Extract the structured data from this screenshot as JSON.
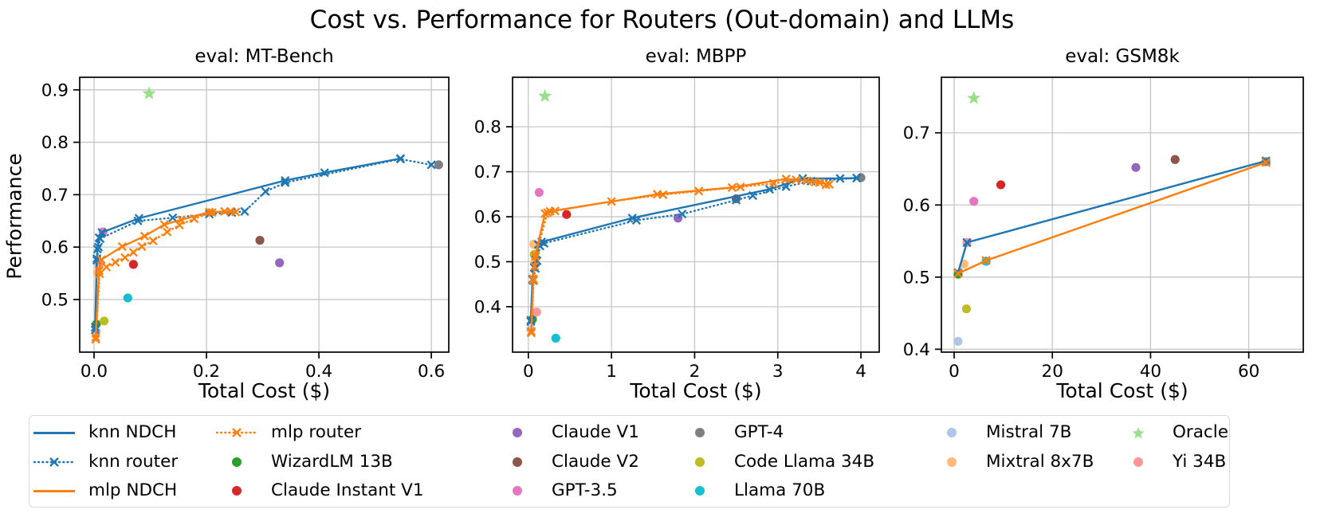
{
  "figure": {
    "title": "Cost vs. Performance for Routers (Out-domain) and LLMs",
    "ylabel": "Performance"
  },
  "colors": {
    "knn": "#1f77b4",
    "mlp": "#ff7f0e",
    "grid": "#c6c6c6",
    "spine": "#000000",
    "wizardlm_13b": "#2ca02c",
    "claude_instant_v1": "#d62728",
    "claude_v1": "#9467bd",
    "claude_v2": "#8c564b",
    "gpt_3_5": "#e377c2",
    "gpt_4": "#7f7f7f",
    "code_llama_34b": "#bcbd22",
    "llama_70b": "#17becf",
    "mistral_7b": "#aec7e8",
    "mixtral_8x7b": "#ffbb78",
    "oracle": "#98df8a",
    "yi_34b": "#ff9896"
  },
  "chart_data": [
    {
      "type": "line_scatter",
      "title": "eval: MT-Bench",
      "xlabel": "Total Cost ($)",
      "ylabel": "Performance",
      "xlim": [
        -0.0255,
        0.631
      ],
      "ylim": [
        0.3996,
        0.924
      ],
      "xticks": [
        0.0,
        0.2,
        0.4,
        0.6
      ],
      "xtick_labels": [
        "0.0",
        "0.2",
        "0.4",
        "0.6"
      ],
      "yticks": [
        0.5,
        0.6,
        0.7,
        0.8,
        0.9
      ],
      "ytick_labels": [
        "0.5",
        "0.6",
        "0.7",
        "0.8",
        "0.9"
      ],
      "grid": true,
      "series": [
        {
          "name": "knn NDCH",
          "color": "#1f77b4",
          "style": "solid",
          "marker": "x",
          "points": [
            [
              0.002,
              0.447
            ],
            [
              0.005,
              0.578
            ],
            [
              0.006,
              0.596
            ],
            [
              0.009,
              0.618
            ],
            [
              0.014,
              0.628
            ],
            [
              0.08,
              0.655
            ],
            [
              0.34,
              0.727
            ],
            [
              0.41,
              0.742
            ],
            [
              0.545,
              0.769
            ]
          ]
        },
        {
          "name": "knn router",
          "color": "#1f77b4",
          "style": "dotted",
          "marker": "x",
          "points": [
            [
              0.002,
              0.442
            ],
            [
              0.005,
              0.575
            ],
            [
              0.008,
              0.6
            ],
            [
              0.011,
              0.616
            ],
            [
              0.078,
              0.65
            ],
            [
              0.14,
              0.656
            ],
            [
              0.205,
              0.663
            ],
            [
              0.245,
              0.666
            ],
            [
              0.268,
              0.668
            ],
            [
              0.305,
              0.706
            ],
            [
              0.34,
              0.723
            ],
            [
              0.545,
              0.768
            ],
            [
              0.6,
              0.757
            ]
          ]
        },
        {
          "name": "mlp NDCH",
          "color": "#ff7f0e",
          "style": "solid",
          "marker": "x",
          "points": [
            [
              0.003,
              0.428
            ],
            [
              0.009,
              0.555
            ],
            [
              0.013,
              0.576
            ],
            [
              0.05,
              0.601
            ],
            [
              0.09,
              0.621
            ],
            [
              0.125,
              0.643
            ],
            [
              0.155,
              0.652
            ],
            [
              0.205,
              0.667
            ],
            [
              0.243,
              0.668
            ]
          ]
        },
        {
          "name": "mlp router",
          "color": "#ff7f0e",
          "style": "dotted",
          "marker": "x",
          "points": [
            [
              0.003,
              0.424
            ],
            [
              0.01,
              0.549
            ],
            [
              0.022,
              0.562
            ],
            [
              0.038,
              0.571
            ],
            [
              0.055,
              0.58
            ],
            [
              0.07,
              0.59
            ],
            [
              0.085,
              0.601
            ],
            [
              0.105,
              0.612
            ],
            [
              0.13,
              0.629
            ],
            [
              0.152,
              0.642
            ],
            [
              0.178,
              0.654
            ],
            [
              0.21,
              0.666
            ],
            [
              0.232,
              0.668
            ],
            [
              0.252,
              0.667
            ]
          ]
        }
      ],
      "scatter": [
        {
          "name": "WizardLM 13B",
          "color": "#2ca02c",
          "marker": "circle",
          "x": 0.004,
          "y": 0.453
        },
        {
          "name": "Mistral 7B",
          "color": "#aec7e8",
          "marker": "circle",
          "x": 0.004,
          "y": 0.439
        },
        {
          "name": "Code Llama 34B",
          "color": "#bcbd22",
          "marker": "circle",
          "x": 0.018,
          "y": 0.459
        },
        {
          "name": "Llama 70B",
          "color": "#17becf",
          "marker": "circle",
          "x": 0.06,
          "y": 0.503
        },
        {
          "name": "Mixtral 8x7B",
          "color": "#ffbb78",
          "marker": "circle",
          "x": 0.006,
          "y": 0.551
        },
        {
          "name": "Yi 34B",
          "color": "#ff9896",
          "marker": "circle",
          "x": 0.009,
          "y": 0.566
        },
        {
          "name": "Claude Instant V1",
          "color": "#d62728",
          "marker": "circle",
          "x": 0.07,
          "y": 0.567
        },
        {
          "name": "GPT-3.5",
          "color": "#e377c2",
          "marker": "circle",
          "x": 0.016,
          "y": 0.629
        },
        {
          "name": "Claude V2",
          "color": "#8c564b",
          "marker": "circle",
          "x": 0.295,
          "y": 0.613
        },
        {
          "name": "Claude V1",
          "color": "#9467bd",
          "marker": "circle",
          "x": 0.33,
          "y": 0.57
        },
        {
          "name": "GPT-4",
          "color": "#7f7f7f",
          "marker": "circle",
          "x": 0.613,
          "y": 0.757
        },
        {
          "name": "Oracle",
          "color": "#98df8a",
          "marker": "star",
          "x": 0.098,
          "y": 0.893
        }
      ]
    },
    {
      "type": "line_scatter",
      "title": "eval: MBPP",
      "xlabel": "Total Cost ($)",
      "ylabel": "Performance",
      "xlim": [
        -0.19,
        4.22
      ],
      "ylim": [
        0.299,
        0.91
      ],
      "xticks": [
        0,
        1,
        2,
        3,
        4
      ],
      "xtick_labels": [
        "0",
        "1",
        "2",
        "3",
        "4"
      ],
      "yticks": [
        0.4,
        0.5,
        0.6,
        0.7,
        0.8
      ],
      "ytick_labels": [
        "0.4",
        "0.5",
        "0.6",
        "0.7",
        "0.8"
      ],
      "grid": true,
      "series": [
        {
          "name": "knn NDCH",
          "color": "#1f77b4",
          "style": "solid",
          "marker": "x",
          "points": [
            [
              0.03,
              0.37
            ],
            [
              0.05,
              0.461
            ],
            [
              0.07,
              0.487
            ],
            [
              0.09,
              0.504
            ],
            [
              0.12,
              0.538
            ],
            [
              0.16,
              0.544
            ],
            [
              1.25,
              0.597
            ],
            [
              2.9,
              0.661
            ],
            [
              3.3,
              0.685
            ],
            [
              3.75,
              0.685
            ],
            [
              3.95,
              0.686
            ]
          ]
        },
        {
          "name": "knn router",
          "color": "#1f77b4",
          "style": "dotted",
          "marker": "x",
          "points": [
            [
              0.03,
              0.367
            ],
            [
              0.06,
              0.458
            ],
            [
              0.085,
              0.485
            ],
            [
              0.105,
              0.502
            ],
            [
              0.14,
              0.535
            ],
            [
              0.19,
              0.541
            ],
            [
              1.3,
              0.592
            ],
            [
              1.85,
              0.606
            ],
            [
              2.5,
              0.637
            ],
            [
              2.7,
              0.647
            ],
            [
              3.1,
              0.667
            ],
            [
              3.4,
              0.679
            ],
            [
              3.95,
              0.686
            ]
          ]
        },
        {
          "name": "mlp NDCH",
          "color": "#ff7f0e",
          "style": "solid",
          "marker": "x",
          "points": [
            [
              0.035,
              0.345
            ],
            [
              0.06,
              0.462
            ],
            [
              0.075,
              0.49
            ],
            [
              0.085,
              0.514
            ],
            [
              0.2,
              0.607
            ],
            [
              0.26,
              0.612
            ],
            [
              1.55,
              0.65
            ],
            [
              2.45,
              0.665
            ],
            [
              3.1,
              0.684
            ],
            [
              3.35,
              0.68
            ],
            [
              3.5,
              0.676
            ],
            [
              3.62,
              0.672
            ]
          ]
        },
        {
          "name": "mlp router",
          "color": "#ff7f0e",
          "style": "dotted",
          "marker": "x",
          "points": [
            [
              0.035,
              0.342
            ],
            [
              0.065,
              0.459
            ],
            [
              0.085,
              0.511
            ],
            [
              0.23,
              0.609
            ],
            [
              0.32,
              0.613
            ],
            [
              1.0,
              0.634
            ],
            [
              1.62,
              0.649
            ],
            [
              2.05,
              0.657
            ],
            [
              2.55,
              0.666
            ],
            [
              2.95,
              0.674
            ],
            [
              3.22,
              0.682
            ],
            [
              3.45,
              0.677
            ],
            [
              3.58,
              0.671
            ]
          ]
        }
      ],
      "scatter": [
        {
          "name": "Mistral 7B",
          "color": "#aec7e8",
          "marker": "circle",
          "x": 0.03,
          "y": 0.349
        },
        {
          "name": "WizardLM 13B",
          "color": "#2ca02c",
          "marker": "circle",
          "x": 0.05,
          "y": 0.372
        },
        {
          "name": "Yi 34B",
          "color": "#ff9896",
          "marker": "circle",
          "x": 0.1,
          "y": 0.388
        },
        {
          "name": "Llama 70B",
          "color": "#17becf",
          "marker": "circle",
          "x": 0.33,
          "y": 0.33
        },
        {
          "name": "Code Llama 34B",
          "color": "#bcbd22",
          "marker": "circle",
          "x": 0.07,
          "y": 0.516
        },
        {
          "name": "Mixtral 8x7B",
          "color": "#ffbb78",
          "marker": "circle",
          "x": 0.065,
          "y": 0.539
        },
        {
          "name": "GPT-3.5",
          "color": "#e377c2",
          "marker": "circle",
          "x": 0.13,
          "y": 0.654
        },
        {
          "name": "Claude Instant V1",
          "color": "#d62728",
          "marker": "circle",
          "x": 0.46,
          "y": 0.605
        },
        {
          "name": "Claude V1",
          "color": "#9467bd",
          "marker": "circle",
          "x": 1.8,
          "y": 0.597
        },
        {
          "name": "Claude V2",
          "color": "#8c564b",
          "marker": "circle",
          "x": 2.5,
          "y": 0.64
        },
        {
          "name": "GPT-4",
          "color": "#7f7f7f",
          "marker": "circle",
          "x": 4.0,
          "y": 0.687
        },
        {
          "name": "Oracle",
          "color": "#98df8a",
          "marker": "star",
          "x": 0.2,
          "y": 0.868
        }
      ]
    },
    {
      "type": "line_scatter",
      "title": "eval: GSM8k",
      "xlabel": "Total Cost ($)",
      "ylabel": "Performance",
      "xlim": [
        -2.6,
        71.1
      ],
      "ylim": [
        0.396,
        0.777
      ],
      "xticks": [
        0,
        20,
        40,
        60
      ],
      "xtick_labels": [
        "0",
        "20",
        "40",
        "60"
      ],
      "yticks": [
        0.4,
        0.5,
        0.6,
        0.7
      ],
      "ytick_labels": [
        "0.4",
        "0.5",
        "0.6",
        "0.7"
      ],
      "grid": true,
      "series": [
        {
          "name": "knn router",
          "color": "#1f77b4",
          "style": "dotted",
          "marker": "x",
          "points": [
            [
              0.8,
              0.506
            ],
            [
              2.6,
              0.548
            ],
            [
              63.5,
              0.661
            ]
          ]
        },
        {
          "name": "mlp router",
          "color": "#ff7f0e",
          "style": "dotted",
          "marker": "x",
          "points": [
            [
              0.8,
              0.505
            ],
            [
              6.5,
              0.523
            ],
            [
              63.5,
              0.659
            ]
          ]
        },
        {
          "name": "knn NDCH",
          "color": "#1f77b4",
          "style": "solid",
          "marker": "x",
          "points": [
            [
              0.8,
              0.506
            ],
            [
              2.6,
              0.548
            ],
            [
              63.5,
              0.661
            ]
          ]
        },
        {
          "name": "mlp NDCH",
          "color": "#ff7f0e",
          "style": "solid",
          "marker": "x",
          "points": [
            [
              0.8,
              0.505
            ],
            [
              6.5,
              0.523
            ],
            [
              63.5,
              0.659
            ]
          ]
        }
      ],
      "scatter": [
        {
          "name": "Mistral 7B",
          "color": "#aec7e8",
          "marker": "circle",
          "x": 0.8,
          "y": 0.411
        },
        {
          "name": "Code Llama 34B",
          "color": "#bcbd22",
          "marker": "circle",
          "x": 2.5,
          "y": 0.456
        },
        {
          "name": "WizardLM 13B",
          "color": "#2ca02c",
          "marker": "circle",
          "x": 0.8,
          "y": 0.504
        },
        {
          "name": "Mixtral 8x7B",
          "color": "#ffbb78",
          "marker": "circle",
          "x": 2.0,
          "y": 0.518
        },
        {
          "name": "Llama 70B",
          "color": "#17becf",
          "marker": "circle",
          "x": 6.5,
          "y": 0.522
        },
        {
          "name": "Yi 34B",
          "color": "#ff9896",
          "marker": "circle",
          "x": 2.6,
          "y": 0.548
        },
        {
          "name": "GPT-3.5",
          "color": "#e377c2",
          "marker": "circle",
          "x": 4.0,
          "y": 0.605
        },
        {
          "name": "Claude Instant V1",
          "color": "#d62728",
          "marker": "circle",
          "x": 9.5,
          "y": 0.628
        },
        {
          "name": "Claude V1",
          "color": "#9467bd",
          "marker": "circle",
          "x": 37.0,
          "y": 0.652
        },
        {
          "name": "Claude V2",
          "color": "#8c564b",
          "marker": "circle",
          "x": 45.0,
          "y": 0.663
        },
        {
          "name": "GPT-4",
          "color": "#7f7f7f",
          "marker": "circle",
          "x": 63.5,
          "y": 0.66
        },
        {
          "name": "Oracle",
          "color": "#98df8a",
          "marker": "star",
          "x": 4.0,
          "y": 0.748
        }
      ]
    }
  ],
  "legend": {
    "position": "bottom",
    "items": [
      {
        "label": "knn NDCH",
        "marker": "line",
        "color": "#1f77b4"
      },
      {
        "label": "knn router",
        "marker": "line-dotted-x",
        "color": "#1f77b4"
      },
      {
        "label": "mlp NDCH",
        "marker": "line",
        "color": "#ff7f0e"
      },
      {
        "label": "mlp router",
        "marker": "line-dotted-x",
        "color": "#ff7f0e"
      },
      {
        "label": "WizardLM 13B",
        "marker": "dot",
        "color": "#2ca02c"
      },
      {
        "label": "Claude Instant V1",
        "marker": "dot",
        "color": "#d62728"
      },
      {
        "label": "Claude V1",
        "marker": "dot",
        "color": "#9467bd"
      },
      {
        "label": "Claude V2",
        "marker": "dot",
        "color": "#8c564b"
      },
      {
        "label": "GPT-3.5",
        "marker": "dot",
        "color": "#e377c2"
      },
      {
        "label": "GPT-4",
        "marker": "dot",
        "color": "#7f7f7f"
      },
      {
        "label": "Code Llama 34B",
        "marker": "dot",
        "color": "#bcbd22"
      },
      {
        "label": "Llama 70B",
        "marker": "dot",
        "color": "#17becf"
      },
      {
        "label": "Mistral 7B",
        "marker": "dot",
        "color": "#aec7e8"
      },
      {
        "label": "Mixtral 8x7B",
        "marker": "dot",
        "color": "#ffbb78"
      },
      {
        "label": "Oracle",
        "marker": "star",
        "color": "#98df8a"
      },
      {
        "label": "Yi 34B",
        "marker": "dot",
        "color": "#ff9896"
      }
    ]
  }
}
